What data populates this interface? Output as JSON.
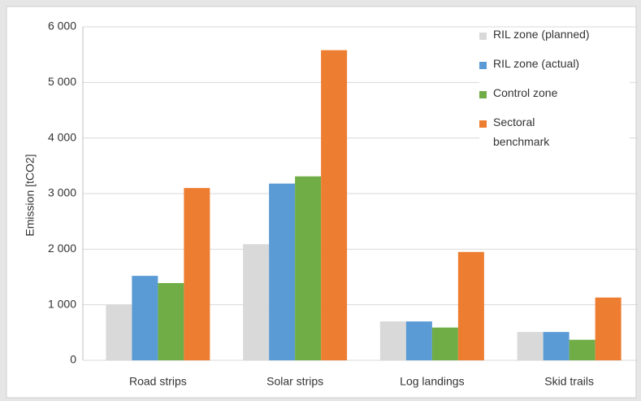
{
  "chart_data": {
    "type": "bar",
    "y_label": "Emission [tCO2]",
    "categories": [
      "Road strips",
      "Solar strips",
      "Log landings",
      "Skid trails"
    ],
    "series": [
      {
        "name": "RIL zone (planned)",
        "color": "#d9d9d9",
        "values": [
          1000,
          2090,
          700,
          510
        ]
      },
      {
        "name": "RIL zone (actual)",
        "color": "#5b9bd5",
        "values": [
          1520,
          3180,
          700,
          510
        ]
      },
      {
        "name": "Control zone",
        "color": "#70ad47",
        "values": [
          1390,
          3310,
          590,
          370
        ]
      },
      {
        "name": "Sectoral benchmark",
        "color": "#ed7d31",
        "values": [
          3100,
          5580,
          1950,
          1130
        ]
      }
    ],
    "ylim": [
      0,
      6000
    ],
    "yticks": [
      0,
      {
        "value": 1000,
        "label": "1 000"
      },
      {
        "value": 2000,
        "label": "2 000"
      },
      {
        "value": 3000,
        "label": "3 000"
      },
      {
        "value": 4000,
        "label": "4 000"
      },
      {
        "value": 5000,
        "label": "5 000"
      },
      {
        "value": 6000,
        "label": "6 000"
      }
    ],
    "grid": true,
    "legend": "right"
  }
}
